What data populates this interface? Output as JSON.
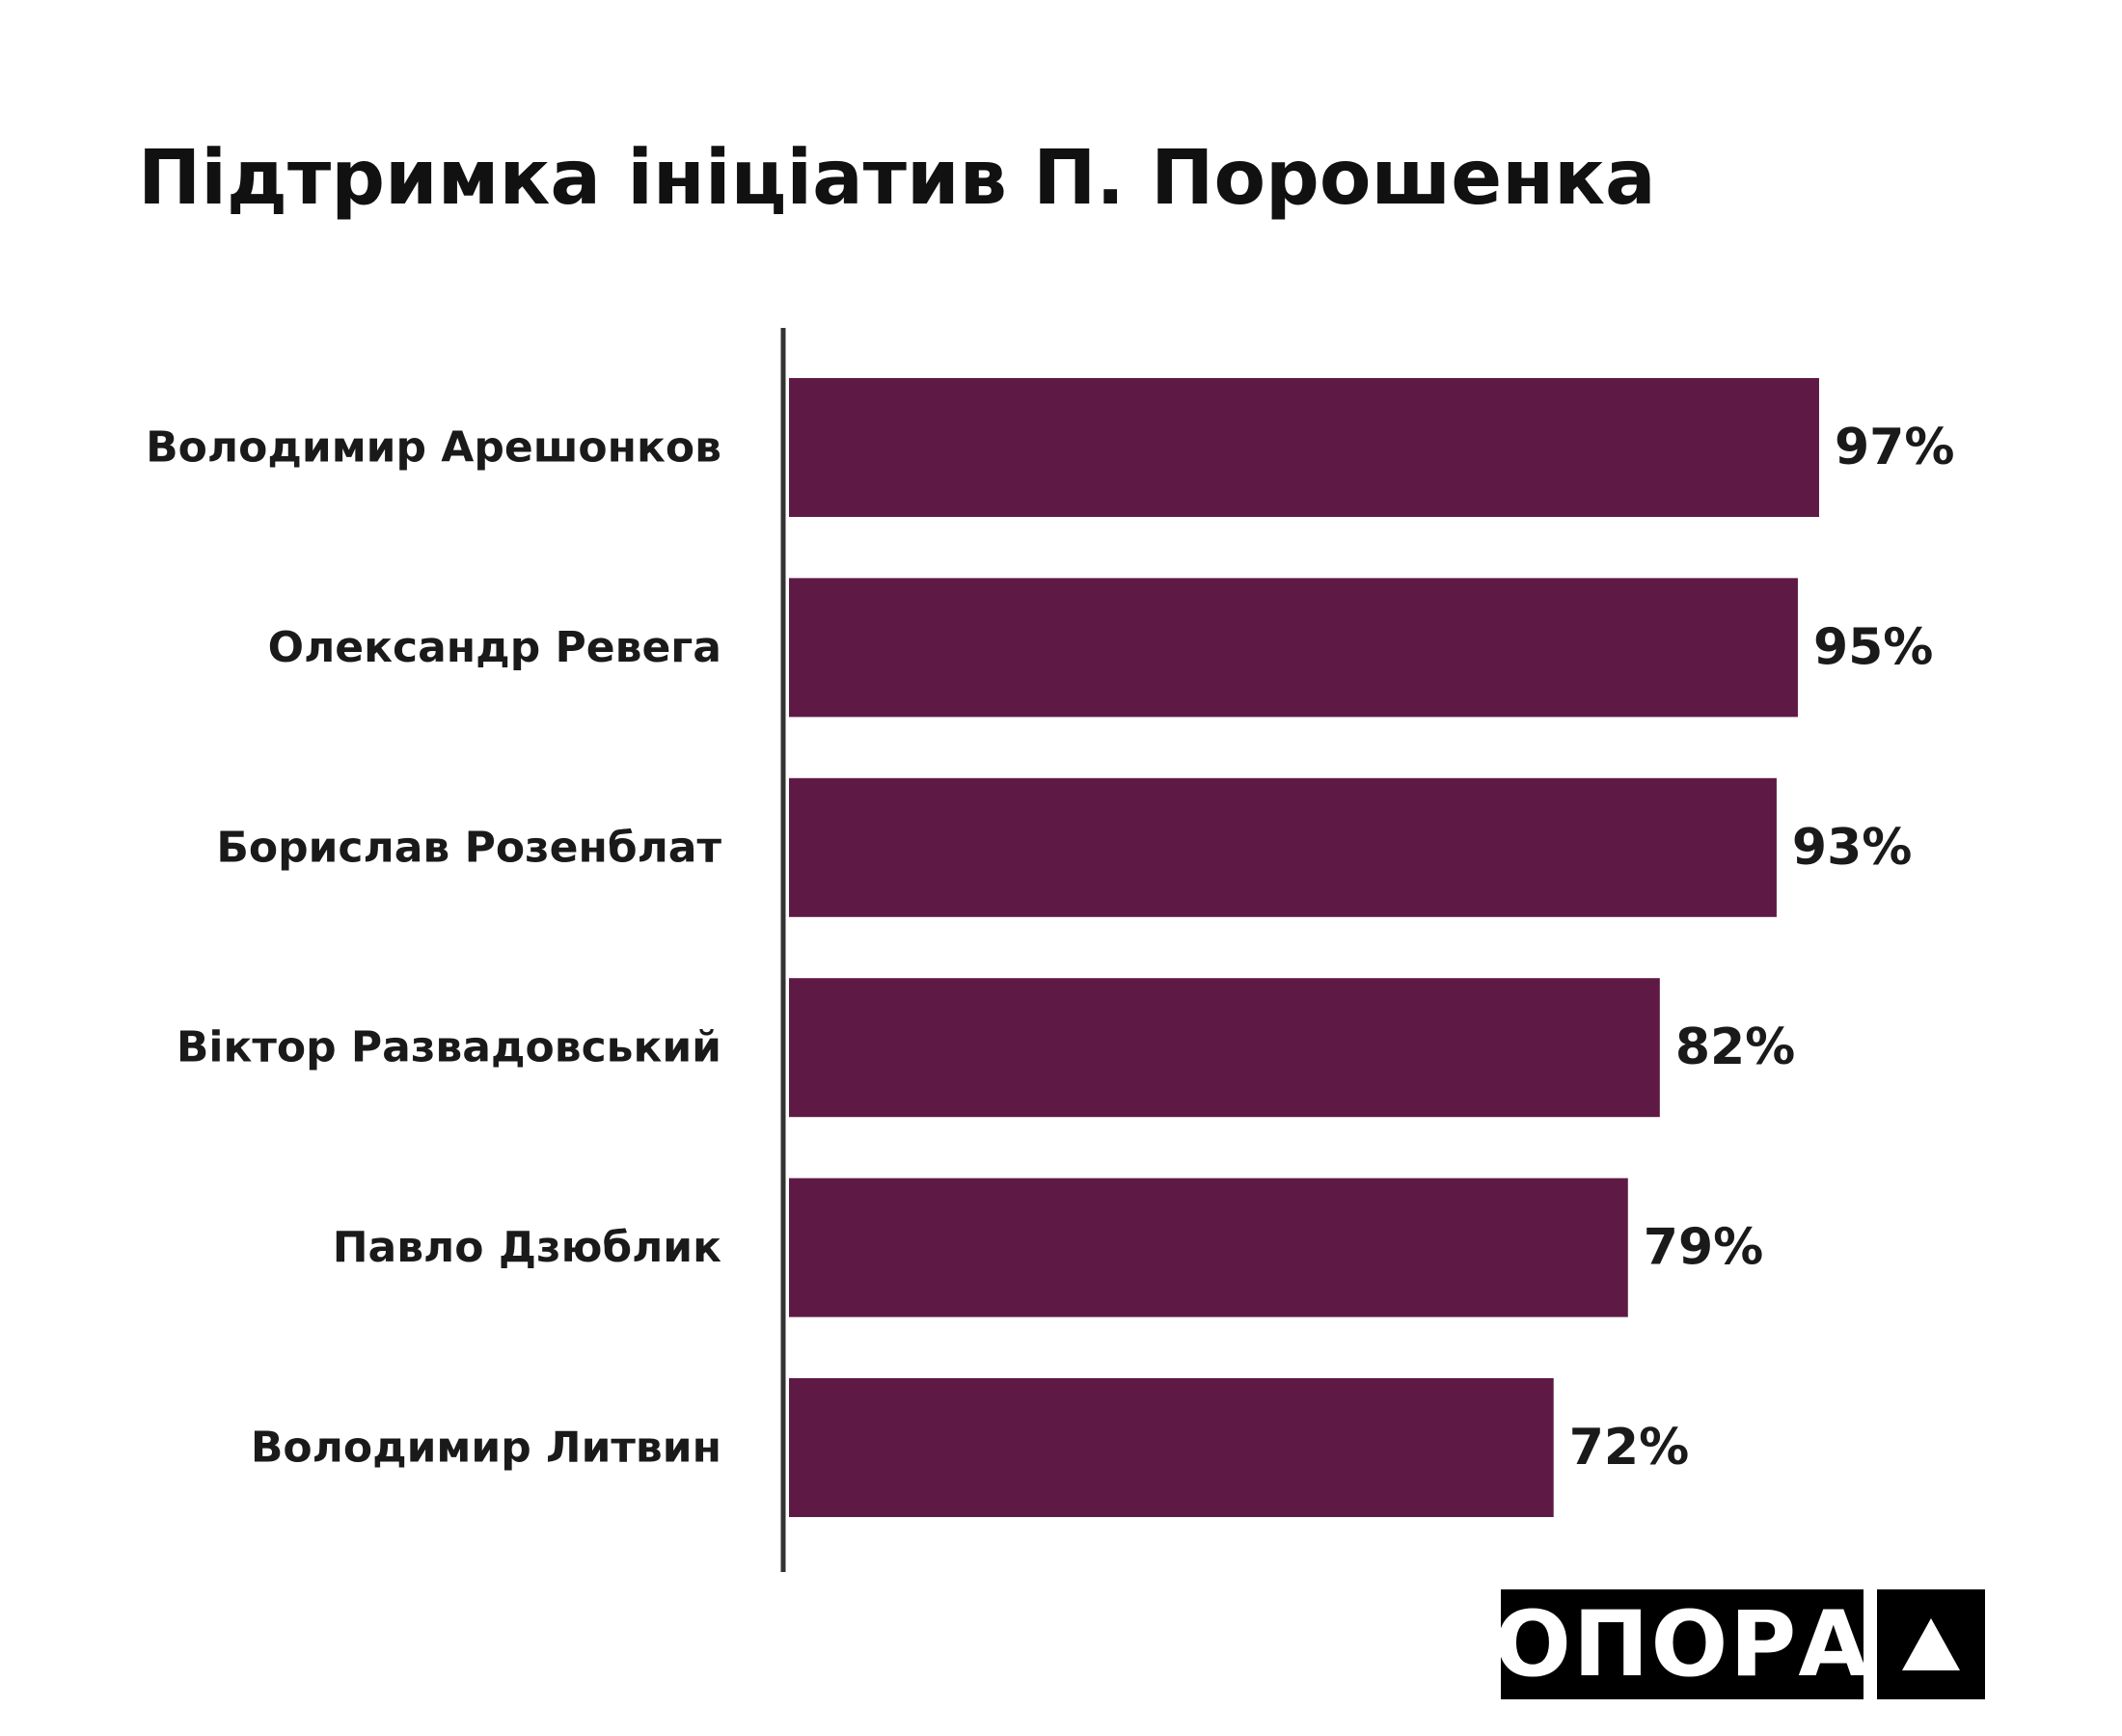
{
  "chart_data": {
    "type": "bar",
    "orientation": "horizontal",
    "title": "Підтримка ініціатив П. Порошенка",
    "categories": [
      "Володимир Арешонков",
      "Олександр Ревега",
      "Борислав Розенблат",
      "Віктор Развадовський",
      "Павло Дзюблик",
      "Володимир Литвин"
    ],
    "values": [
      97,
      95,
      93,
      82,
      79,
      72
    ],
    "value_labels": [
      "97%",
      "95%",
      "93%",
      "82%",
      "79%",
      "72%"
    ],
    "xlim": [
      0,
      100
    ],
    "grid": false,
    "legend": "none"
  },
  "colors": {
    "bar": "#5e1a44",
    "text": "#1a1a1a",
    "axis": "#333333"
  },
  "logo": {
    "text": "ОПОРА",
    "icon": "triangle-icon"
  }
}
